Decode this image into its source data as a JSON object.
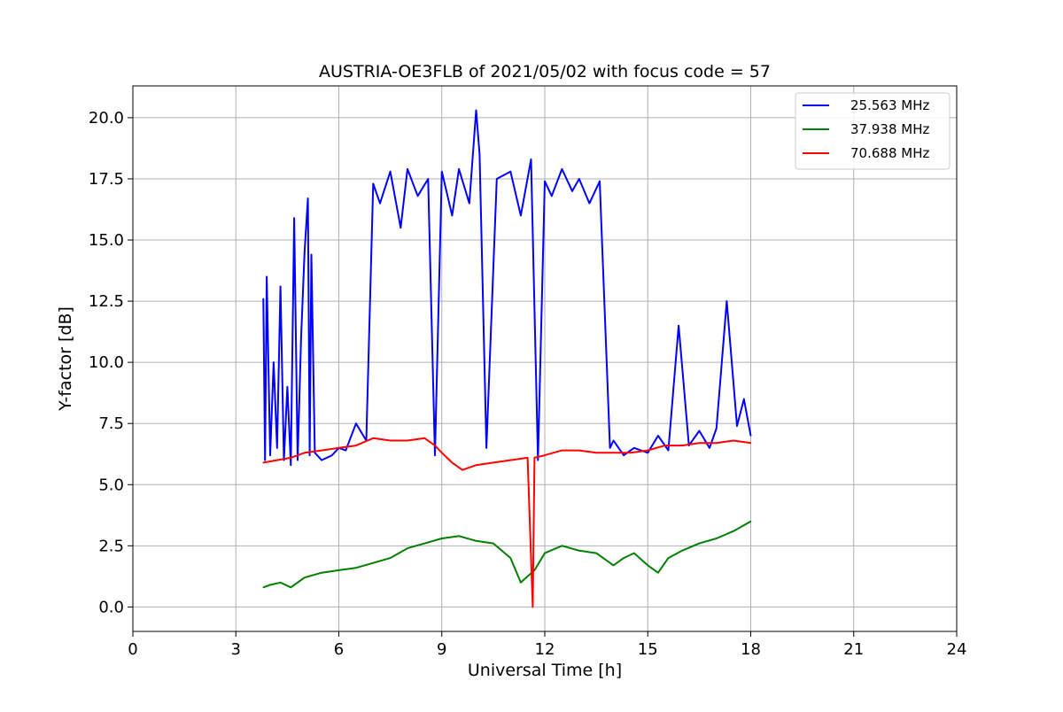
{
  "chart_data": {
    "type": "line",
    "title": "AUSTRIA-OE3FLB of 2021/05/02 with focus code = 57",
    "xlabel": "Universal Time [h]",
    "ylabel": "Y-factor [dB]",
    "xlim": [
      0,
      24
    ],
    "ylim": [
      -1.0,
      21.3
    ],
    "xticks": [
      0,
      3,
      6,
      9,
      12,
      15,
      18,
      21,
      24
    ],
    "xtick_labels": [
      "0",
      "3",
      "6",
      "9",
      "12",
      "15",
      "18",
      "21",
      "24"
    ],
    "yticks": [
      0,
      2.5,
      5,
      7.5,
      10,
      12.5,
      15,
      17.5,
      20
    ],
    "ytick_labels": [
      "0.0",
      "2.5",
      "5.0",
      "7.5",
      "10.0",
      "12.5",
      "15.0",
      "17.5",
      "20.0"
    ],
    "grid": true,
    "legend_position": "top-right",
    "series": [
      {
        "name": "25.563 MHz",
        "color": "#0000ff",
        "x": [
          3.8,
          3.85,
          3.9,
          4.0,
          4.1,
          4.2,
          4.3,
          4.4,
          4.5,
          4.6,
          4.7,
          4.8,
          4.9,
          5.0,
          5.1,
          5.15,
          5.2,
          5.3,
          5.5,
          5.8,
          6.0,
          6.2,
          6.5,
          6.8,
          7.0,
          7.2,
          7.5,
          7.8,
          8.0,
          8.3,
          8.6,
          8.8,
          9.0,
          9.3,
          9.5,
          9.8,
          10.0,
          10.1,
          10.3,
          10.6,
          11.0,
          11.3,
          11.6,
          11.8,
          12.0,
          12.2,
          12.5,
          12.8,
          13.0,
          13.3,
          13.6,
          13.9,
          14.0,
          14.3,
          14.6,
          15.0,
          15.3,
          15.6,
          15.9,
          16.2,
          16.5,
          16.8,
          17.0,
          17.3,
          17.6,
          17.8,
          18.0
        ],
        "values": [
          12.6,
          6.0,
          13.5,
          6.2,
          10.0,
          6.5,
          13.1,
          6.0,
          9.0,
          5.8,
          15.9,
          6.0,
          11.0,
          14.5,
          16.7,
          6.2,
          14.4,
          6.3,
          6.0,
          6.2,
          6.5,
          6.4,
          7.5,
          6.8,
          17.3,
          16.5,
          17.8,
          15.5,
          17.9,
          16.8,
          17.5,
          6.2,
          17.8,
          16.0,
          17.9,
          16.5,
          20.3,
          18.5,
          6.5,
          17.5,
          17.8,
          16.0,
          18.3,
          6.0,
          17.4,
          16.8,
          17.9,
          17.0,
          17.5,
          16.5,
          17.4,
          6.5,
          6.8,
          6.2,
          6.5,
          6.3,
          7.0,
          6.4,
          11.5,
          6.6,
          7.2,
          6.5,
          7.3,
          12.5,
          7.4,
          8.5,
          7.0
        ]
      },
      {
        "name": "37.938 MHz",
        "color": "#008000",
        "x": [
          3.8,
          4.0,
          4.3,
          4.6,
          5.0,
          5.5,
          6.0,
          6.5,
          7.0,
          7.5,
          8.0,
          8.5,
          9.0,
          9.5,
          10.0,
          10.5,
          11.0,
          11.3,
          11.7,
          12.0,
          12.5,
          13.0,
          13.5,
          14.0,
          14.3,
          14.6,
          15.0,
          15.3,
          15.6,
          16.0,
          16.5,
          17.0,
          17.5,
          18.0
        ],
        "values": [
          0.8,
          0.9,
          1.0,
          0.8,
          1.2,
          1.4,
          1.5,
          1.6,
          1.8,
          2.0,
          2.4,
          2.6,
          2.8,
          2.9,
          2.7,
          2.6,
          2.0,
          1.0,
          1.5,
          2.2,
          2.5,
          2.3,
          2.2,
          1.7,
          2.0,
          2.2,
          1.7,
          1.4,
          2.0,
          2.3,
          2.6,
          2.8,
          3.1,
          3.5
        ]
      },
      {
        "name": "70.688 MHz",
        "color": "#ff0000",
        "x": [
          3.8,
          4.2,
          4.6,
          5.0,
          5.5,
          6.0,
          6.5,
          7.0,
          7.5,
          8.0,
          8.5,
          8.8,
          9.0,
          9.3,
          9.6,
          10.0,
          10.5,
          11.0,
          11.5,
          11.65,
          11.7,
          12.0,
          12.5,
          13.0,
          13.5,
          14.0,
          14.5,
          15.0,
          15.5,
          16.0,
          16.5,
          17.0,
          17.5,
          18.0
        ],
        "values": [
          5.9,
          6.0,
          6.1,
          6.3,
          6.4,
          6.5,
          6.6,
          6.9,
          6.8,
          6.8,
          6.9,
          6.6,
          6.3,
          5.9,
          5.6,
          5.8,
          5.9,
          6.0,
          6.1,
          0.0,
          6.1,
          6.2,
          6.4,
          6.4,
          6.3,
          6.3,
          6.3,
          6.4,
          6.6,
          6.6,
          6.7,
          6.7,
          6.8,
          6.7
        ]
      }
    ]
  }
}
